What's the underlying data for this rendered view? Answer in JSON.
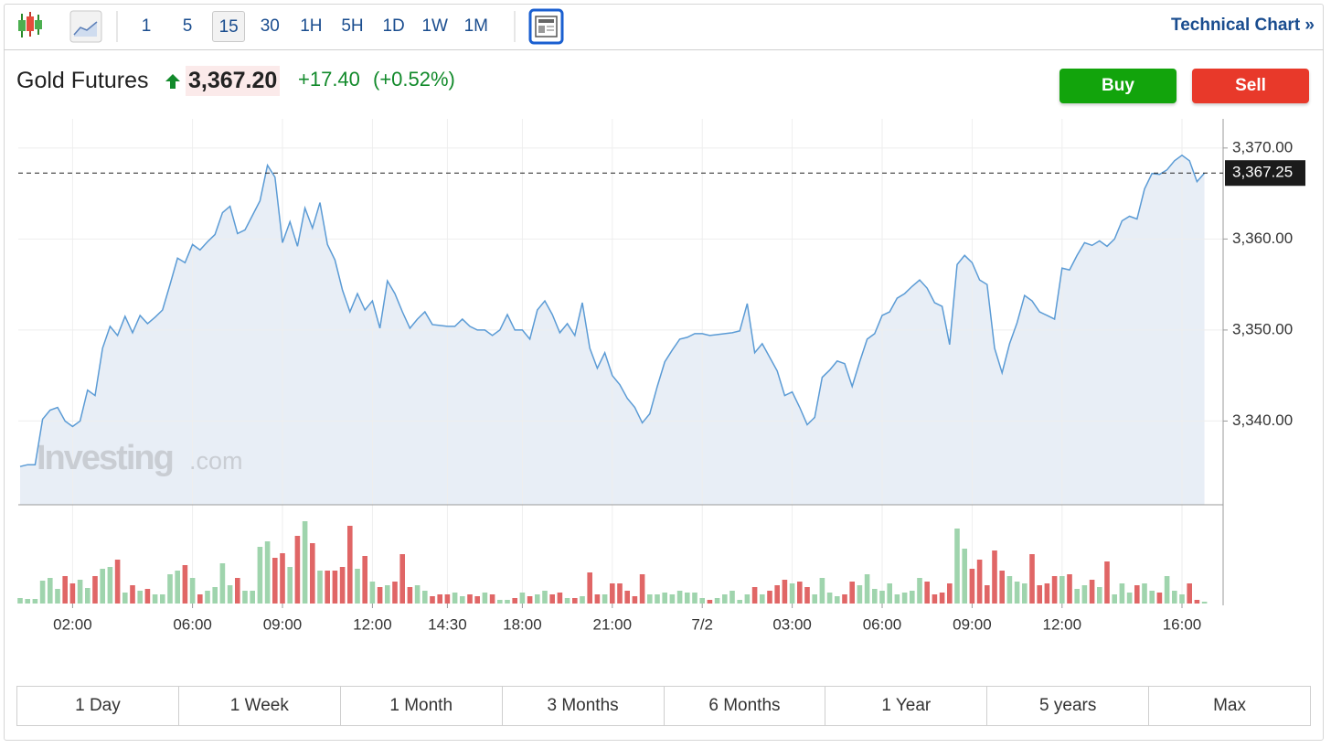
{
  "toolbar": {
    "intervals": [
      "1",
      "5",
      "15",
      "30",
      "1H",
      "5H",
      "1D",
      "1W",
      "1M"
    ],
    "selected_interval": "15",
    "technical_chart": "Technical Chart »"
  },
  "header": {
    "name": "Gold Futures",
    "price": "3,367.20",
    "change": "+17.40",
    "change_percent": "(+0.52%)",
    "buy": "Buy",
    "sell": "Sell"
  },
  "watermark": {
    "brand": "Investing",
    "suffix": ".com"
  },
  "chart_data": {
    "type": "line",
    "categories": [
      null,
      null,
      null,
      null,
      null,
      null,
      null,
      "02:00",
      null,
      null,
      null,
      null,
      null,
      null,
      null,
      null,
      null,
      null,
      null,
      null,
      null,
      null,
      null,
      "06:00",
      null,
      null,
      null,
      null,
      null,
      null,
      null,
      null,
      null,
      null,
      null,
      "09:00",
      null,
      null,
      null,
      null,
      null,
      null,
      null,
      null,
      null,
      null,
      null,
      "12:00",
      null,
      null,
      null,
      null,
      null,
      null,
      null,
      null,
      null,
      "14:30",
      null,
      null,
      null,
      null,
      null,
      null,
      null,
      null,
      null,
      "18:00",
      null,
      null,
      null,
      null,
      null,
      null,
      null,
      null,
      null,
      null,
      null,
      "21:00",
      null,
      null,
      null,
      null,
      null,
      null,
      null,
      null,
      null,
      null,
      null,
      "7/2",
      null,
      null,
      null,
      null,
      null,
      null,
      null,
      null,
      null,
      null,
      null,
      "03:00",
      null,
      null,
      null,
      null,
      null,
      null,
      null,
      null,
      null,
      null,
      null,
      "06:00",
      null,
      null,
      null,
      null,
      null,
      null,
      null,
      null,
      null,
      null,
      null,
      "09:00",
      null,
      null,
      null,
      null,
      null,
      null,
      null,
      null,
      null,
      null,
      null,
      "12:00",
      null,
      null,
      null,
      null,
      null,
      null,
      null,
      null,
      null,
      null,
      null,
      null,
      null,
      null,
      null,
      "16:00",
      null,
      null,
      null
    ],
    "values": [
      3335.0,
      3335.2,
      3335.2,
      3340.2,
      3341.2,
      3341.5,
      3340.0,
      3339.4,
      3340.0,
      3343.4,
      3342.8,
      3348.0,
      3350.4,
      3349.4,
      3351.5,
      3349.7,
      3351.6,
      3350.7,
      3351.4,
      3352.2,
      3355.0,
      3357.9,
      3357.4,
      3359.4,
      3358.8,
      3359.7,
      3360.5,
      3362.9,
      3363.6,
      3360.6,
      3361.0,
      3362.6,
      3364.2,
      3368.1,
      3366.8,
      3359.6,
      3361.9,
      3359.2,
      3363.4,
      3361.2,
      3364.0,
      3359.4,
      3357.7,
      3354.4,
      3352.0,
      3354.0,
      3352.2,
      3353.2,
      3350.2,
      3355.4,
      3354.0,
      3352.0,
      3350.2,
      3351.2,
      3352.0,
      3350.6,
      3350.5,
      3350.4,
      3350.4,
      3351.2,
      3350.4,
      3350.0,
      3350.0,
      3349.4,
      3350.0,
      3351.7,
      3350.0,
      3350.0,
      3349.0,
      3352.2,
      3353.2,
      3351.7,
      3349.7,
      3350.7,
      3349.4,
      3353.0,
      3348.0,
      3345.8,
      3347.5,
      3345.0,
      3344.0,
      3342.5,
      3341.5,
      3339.8,
      3340.8,
      3343.8,
      3346.5,
      3347.8,
      3349.0,
      3349.2,
      3349.6,
      3349.6,
      3349.4,
      3349.5,
      3349.6,
      3349.7,
      3349.9,
      3352.9,
      3347.5,
      3348.5,
      3347.0,
      3345.5,
      3342.8,
      3343.2,
      3341.5,
      3339.6,
      3340.4,
      3344.8,
      3345.6,
      3346.6,
      3346.3,
      3343.8,
      3346.5,
      3349.0,
      3349.6,
      3351.6,
      3352.0,
      3353.5,
      3354.0,
      3354.8,
      3355.5,
      3354.6,
      3353.0,
      3352.6,
      3348.4,
      3357.2,
      3358.2,
      3357.4,
      3355.5,
      3355.0,
      3348.0,
      3345.3,
      3348.5,
      3350.8,
      3353.8,
      3353.2,
      3352.0,
      3351.6,
      3351.2,
      3356.8,
      3356.6,
      3358.2,
      3359.6,
      3359.3,
      3359.8,
      3359.2,
      3360.0,
      3362.0,
      3362.5,
      3362.2,
      3365.5,
      3367.2,
      3367.1,
      3367.6,
      3368.6,
      3369.2,
      3368.6,
      3366.3,
      3367.25
    ],
    "volume": [
      6,
      5,
      5,
      25,
      28,
      16,
      30,
      22,
      26,
      17,
      30,
      38,
      40,
      48,
      12,
      20,
      14,
      16,
      10,
      10,
      32,
      36,
      42,
      28,
      10,
      14,
      18,
      44,
      20,
      28,
      14,
      14,
      62,
      68,
      50,
      55,
      40,
      74,
      90,
      66,
      36,
      36,
      36,
      40,
      85,
      38,
      52,
      24,
      18,
      20,
      24,
      54,
      18,
      20,
      14,
      8,
      10,
      10,
      12,
      8,
      10,
      8,
      12,
      10,
      4,
      4,
      6,
      12,
      8,
      10,
      14,
      10,
      12,
      6,
      6,
      8,
      34,
      10,
      10,
      22,
      22,
      14,
      8,
      32,
      10,
      10,
      12,
      10,
      14,
      12,
      12,
      6,
      4,
      6,
      10,
      14,
      4,
      10,
      18,
      10,
      14,
      20,
      26,
      22,
      24,
      18,
      10,
      28,
      12,
      8,
      10,
      24,
      20,
      32,
      16,
      14,
      22,
      10,
      12,
      14,
      28,
      24,
      10,
      12,
      22,
      82,
      60,
      38,
      48,
      20,
      58,
      36,
      30,
      24,
      22,
      54,
      20,
      22,
      30,
      30,
      32,
      16,
      20,
      26,
      18,
      46,
      10,
      22,
      12,
      20,
      22,
      14,
      12,
      30,
      14,
      10,
      22,
      4,
      2
    ],
    "color": "#5b9bd5",
    "area_color": "#e8eef6",
    "up_color": "#9fd4ad",
    "down_color": "#e06666",
    "ylim": [
      3330.8,
      3373.2
    ],
    "yticks": [
      {
        "value": 3340,
        "label": "3,340.00"
      },
      {
        "value": 3350,
        "label": "3,350.00"
      },
      {
        "value": 3360,
        "label": "3,360.00"
      },
      {
        "value": 3370,
        "label": "3,370.00"
      }
    ],
    "last_price": {
      "value": 3367.25,
      "label": "3,367.25"
    },
    "grid": true
  },
  "ranges": [
    "1 Day",
    "1 Week",
    "1 Month",
    "3 Months",
    "6 Months",
    "1 Year",
    "5 years",
    "Max"
  ]
}
